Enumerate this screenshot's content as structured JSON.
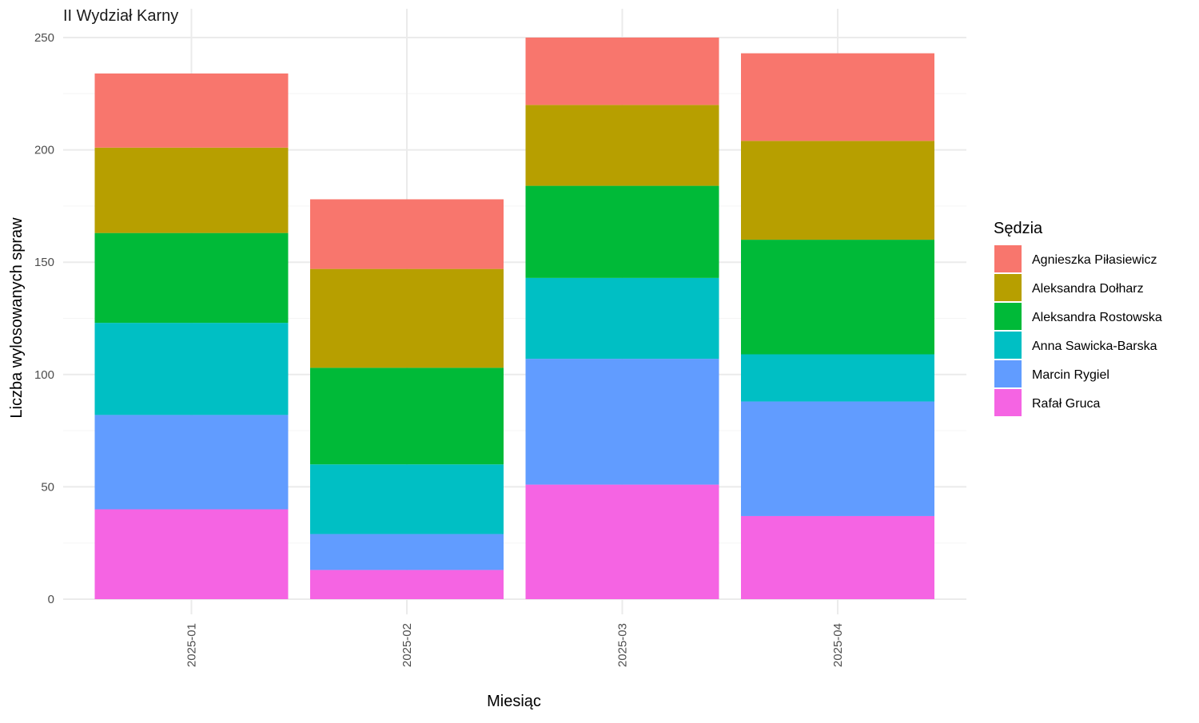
{
  "chart_data": {
    "type": "bar",
    "stacked": true,
    "title": "II Wydział Karny",
    "xlabel": "Miesiąc",
    "ylabel": "Liczba wylosowanych spraw",
    "ylim": [
      0,
      250
    ],
    "yticks": [
      0,
      50,
      100,
      150,
      200,
      250
    ],
    "grid": true,
    "legend_position": "right",
    "legend_title": "Sędzia",
    "categories": [
      "2025-01",
      "2025-02",
      "2025-03",
      "2025-04"
    ],
    "series": [
      {
        "name": "Agnieszka Piłasiewicz",
        "color": "#F8766D",
        "values": [
          33,
          31,
          30,
          39
        ]
      },
      {
        "name": "Aleksandra Dołharz",
        "color": "#B79F00",
        "values": [
          38,
          44,
          36,
          44
        ]
      },
      {
        "name": "Aleksandra Rostowska",
        "color": "#00BA38",
        "values": [
          40,
          43,
          41,
          51
        ]
      },
      {
        "name": "Anna Sawicka-Barska",
        "color": "#00BFC4",
        "values": [
          41,
          31,
          36,
          21
        ]
      },
      {
        "name": "Marcin Rygiel",
        "color": "#619CFF",
        "values": [
          42,
          16,
          56,
          51
        ]
      },
      {
        "name": "Rafał Gruca",
        "color": "#F564E3",
        "values": [
          40,
          13,
          51,
          37
        ]
      }
    ]
  }
}
